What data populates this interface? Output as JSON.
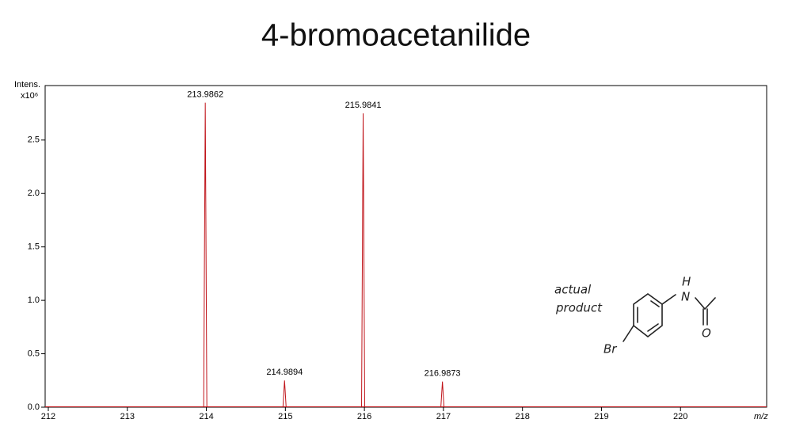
{
  "chart_data": {
    "type": "spectrum",
    "title": "4-bromoacetanilide",
    "y_label": "Intens.",
    "y_scale_label": "x10⁶",
    "x_label": "m/z",
    "x": [
      213.9862,
      214.9894,
      215.9841,
      216.9873
    ],
    "values": [
      2.85,
      0.25,
      2.75,
      0.24
    ],
    "color": "#c0141a",
    "xlim": [
      211.96,
      221.09
    ],
    "ylim": [
      0,
      3.01
    ],
    "xticks": [
      212,
      213,
      214,
      215,
      216,
      217,
      218,
      219,
      220
    ],
    "yticks": [
      {
        "value": 0,
        "label": "0.0"
      },
      0.5,
      {
        "value": 1,
        "label": "1.0"
      },
      1.5,
      {
        "value": 2,
        "label": "2.0"
      },
      2.5
    ],
    "annotation": [
      "actual",
      "product"
    ],
    "structure_labels": [
      "H",
      "N",
      "O",
      "Br"
    ]
  }
}
